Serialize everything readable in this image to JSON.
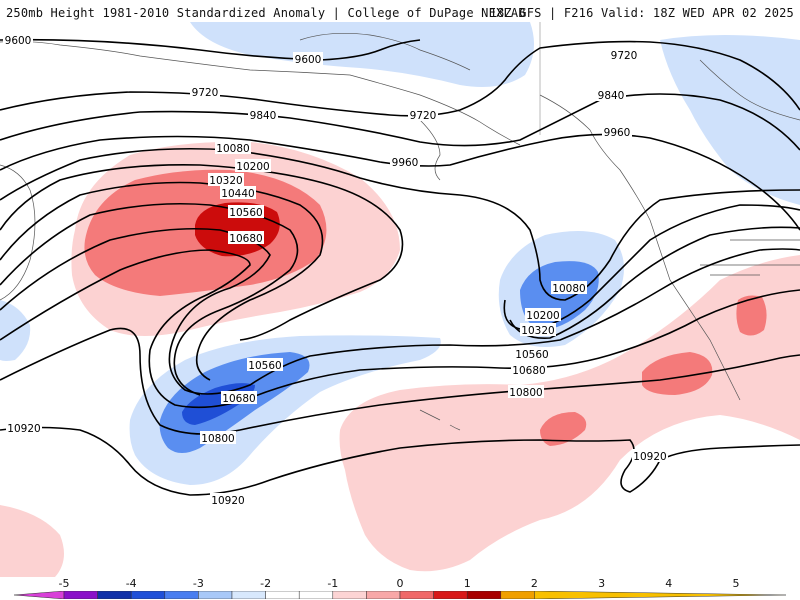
{
  "header": {
    "left_title": "250mb Height 1981-2010 Standardized Anomaly | College of DuPage NEXLAB",
    "right_title": "18Z GFS | F216 Valid: 18Z WED APR 02 2025"
  },
  "contour_labels": {
    "c9600a": "9600",
    "c9600b": "9600",
    "c9720a": "9720",
    "c9720b": "9720",
    "c9720c": "9720",
    "c9840a": "9840",
    "c9840b": "9840",
    "c9960a": "9960",
    "c9960b": "9960",
    "c10080a": "10080",
    "c10080b": "10080",
    "c10200a": "10200",
    "c10200b": "10200",
    "c10320a": "10320",
    "c10320b": "10320",
    "c10440": "10440",
    "c10560a": "10560",
    "c10560b": "10560",
    "c10560c": "10560",
    "c10680a": "10680",
    "c10680b": "10680",
    "c10680c": "10680",
    "c10800a": "10800",
    "c10800b": "10800",
    "c10920a": "10920",
    "c10920b": "10920",
    "c10920c": "10920"
  },
  "colorbar": {
    "ticks": [
      "-5",
      "-4",
      "-3",
      "-2",
      "-1",
      "0",
      "1",
      "2",
      "3",
      "4",
      "5"
    ],
    "colors": [
      "#d840d8",
      "#8a10c8",
      "#1030a8",
      "#2050d8",
      "#4a7ef0",
      "#a8c8f8",
      "#d8e8fc",
      "#ffffff",
      "#ffffff",
      "#fcd4d4",
      "#f8a8a8",
      "#f06868",
      "#d81818",
      "#a80000",
      "#f0a000",
      "#f8c000"
    ]
  },
  "colors": {
    "neg1": "#cfe1fb",
    "neg2": "#5a8ef0",
    "neg3": "#1f4fd6",
    "pos1": "#fcd2d2",
    "pos2": "#f47a7a",
    "pos3": "#cc0c0c"
  }
}
